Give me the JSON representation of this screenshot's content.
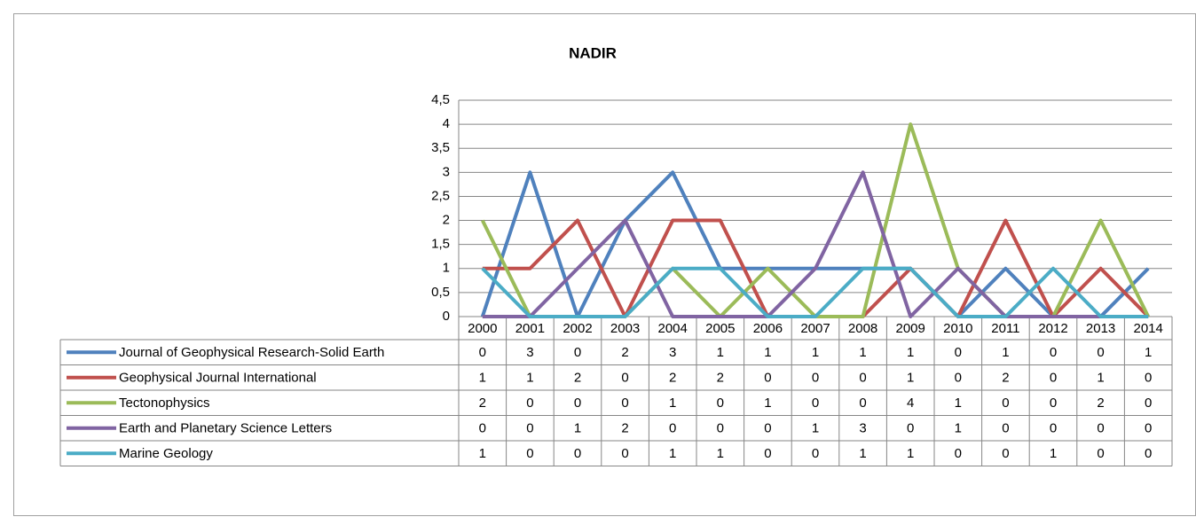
{
  "chart_data": {
    "type": "line",
    "title": "NADIR",
    "categories": [
      "2000",
      "2001",
      "2002",
      "2003",
      "2004",
      "2005",
      "2006",
      "2007",
      "2008",
      "2009",
      "2010",
      "2011",
      "2012",
      "2013",
      "2014"
    ],
    "series": [
      {
        "name": "Journal of Geophysical Research-Solid Earth",
        "color": "#4f81bd",
        "values": [
          0,
          3,
          0,
          2,
          3,
          1,
          1,
          1,
          1,
          1,
          0,
          1,
          0,
          0,
          1
        ]
      },
      {
        "name": "Geophysical Journal International",
        "color": "#c0504d",
        "values": [
          1,
          1,
          2,
          0,
          2,
          2,
          0,
          0,
          0,
          1,
          0,
          2,
          0,
          1,
          0
        ]
      },
      {
        "name": "Tectonophysics",
        "color": "#9bbb59",
        "values": [
          2,
          0,
          0,
          0,
          1,
          0,
          1,
          0,
          0,
          4,
          1,
          0,
          0,
          2,
          0
        ]
      },
      {
        "name": "Earth and Planetary Science Letters",
        "color": "#8064a2",
        "values": [
          0,
          0,
          1,
          2,
          0,
          0,
          0,
          1,
          3,
          0,
          1,
          0,
          0,
          0,
          0
        ]
      },
      {
        "name": "Marine Geology",
        "color": "#4bacc6",
        "values": [
          1,
          0,
          0,
          0,
          1,
          1,
          0,
          0,
          1,
          1,
          0,
          0,
          1,
          0,
          0
        ]
      }
    ],
    "ylim": [
      0,
      4.5
    ],
    "yticks": [
      0,
      {
        "value": 0.5,
        "label": "0,5"
      },
      1,
      {
        "value": 1.5,
        "label": "1,5"
      },
      2,
      {
        "value": 2.5,
        "label": "2,5"
      },
      3,
      {
        "value": 3.5,
        "label": "3,5"
      },
      4,
      {
        "value": 4.5,
        "label": "4,5"
      }
    ],
    "grid": true
  }
}
